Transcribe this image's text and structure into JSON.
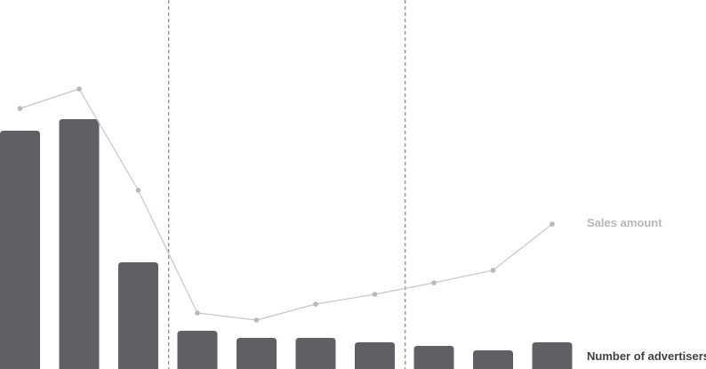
{
  "chart_data": {
    "type": "bar",
    "categories": [
      "",
      "",
      "",
      "",
      "",
      "",
      "",
      "",
      "",
      ""
    ],
    "series": [
      {
        "name": "Number of advertisers",
        "type": "bar",
        "values": [
          268,
          281,
          120,
          43,
          35,
          35,
          30,
          26,
          21,
          30
        ]
      },
      {
        "name": "Sales amount",
        "type": "line",
        "values": [
          293,
          315,
          201,
          63,
          55,
          73,
          84,
          97,
          111,
          163
        ]
      }
    ],
    "dividers_after_category_index": [
      2,
      6
    ],
    "ylim": [
      0,
      415
    ],
    "grid": false,
    "legend": "inline-right"
  },
  "colors": {
    "bar": "#5f6064",
    "line": "#c6c6c8",
    "point": "#b8b8ba",
    "divider": "#6d6e72",
    "bar_label": "#3f4044",
    "line_label": "#b7b7b9"
  }
}
